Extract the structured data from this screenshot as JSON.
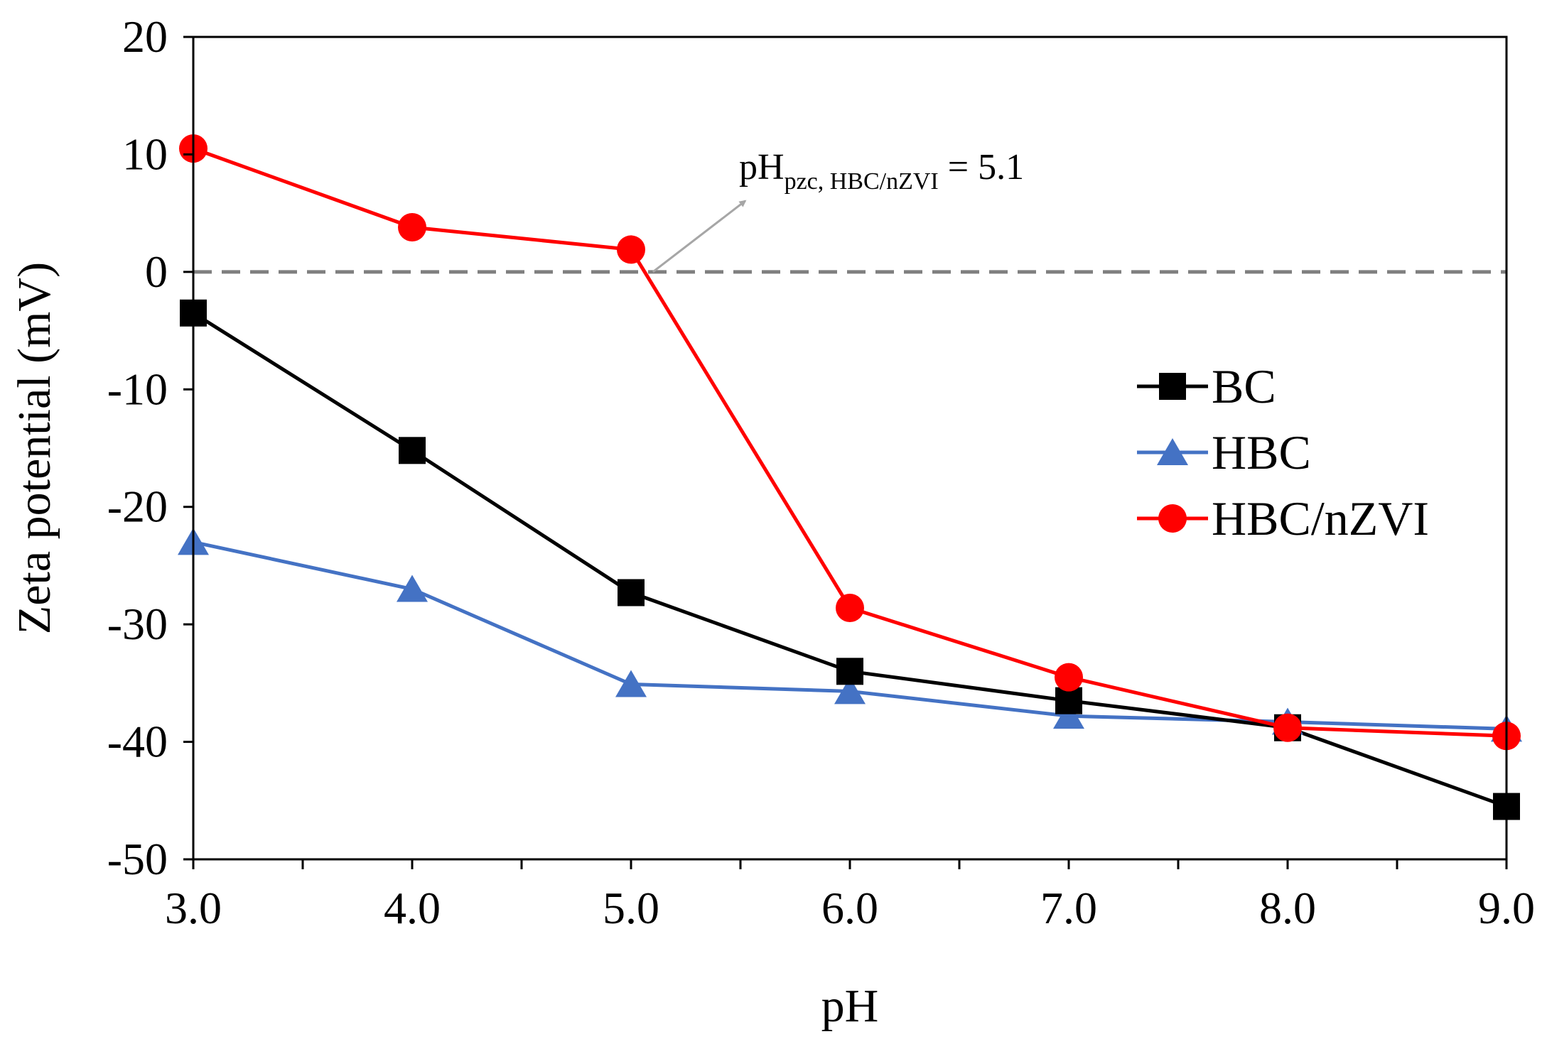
{
  "chart_data": {
    "type": "line",
    "title": "",
    "xlabel": "pH",
    "ylabel": "Zeta potential (mV)",
    "x": [
      3.0,
      4.0,
      5.0,
      6.0,
      7.0,
      8.0,
      9.0
    ],
    "x_tick_labels": [
      "3.0",
      "4.0",
      "5.0",
      "6.0",
      "7.0",
      "8.0",
      "9.0"
    ],
    "xlim": [
      3.0,
      9.0
    ],
    "ylim": [
      -50,
      20
    ],
    "y_ticks": [
      20,
      10,
      0,
      -10,
      -20,
      -30,
      -40,
      -50
    ],
    "y_tick_labels": [
      "20",
      "10",
      "0",
      "-10",
      "-20",
      "-30",
      "-40",
      "-50"
    ],
    "grid": false,
    "legend_position": "right",
    "series": [
      {
        "name": "BC",
        "marker": "square",
        "color": "#000000",
        "values": [
          -3.5,
          -15.2,
          -27.3,
          -34.0,
          -36.5,
          -38.8,
          -45.5
        ]
      },
      {
        "name": "HBC",
        "marker": "triangle",
        "color": "#4472c4",
        "values": [
          -23.0,
          -27.0,
          -35.1,
          -35.7,
          -37.8,
          -38.3,
          -38.9
        ]
      },
      {
        "name": "HBC/nZVI",
        "marker": "circle",
        "color": "#ff0000",
        "values": [
          10.5,
          3.8,
          1.9,
          -28.6,
          -34.5,
          -38.8,
          -39.5
        ]
      }
    ],
    "zero_line": {
      "value": 0,
      "color": "#7f7f7f",
      "style": "dashed"
    },
    "annotation": {
      "text_main": "pH",
      "text_sub": "pzc, HBC/nZVI",
      "text_value": " = 5.1",
      "point_x": 5.1,
      "point_y": 0,
      "arrow_color": "#a6a6a6"
    }
  }
}
